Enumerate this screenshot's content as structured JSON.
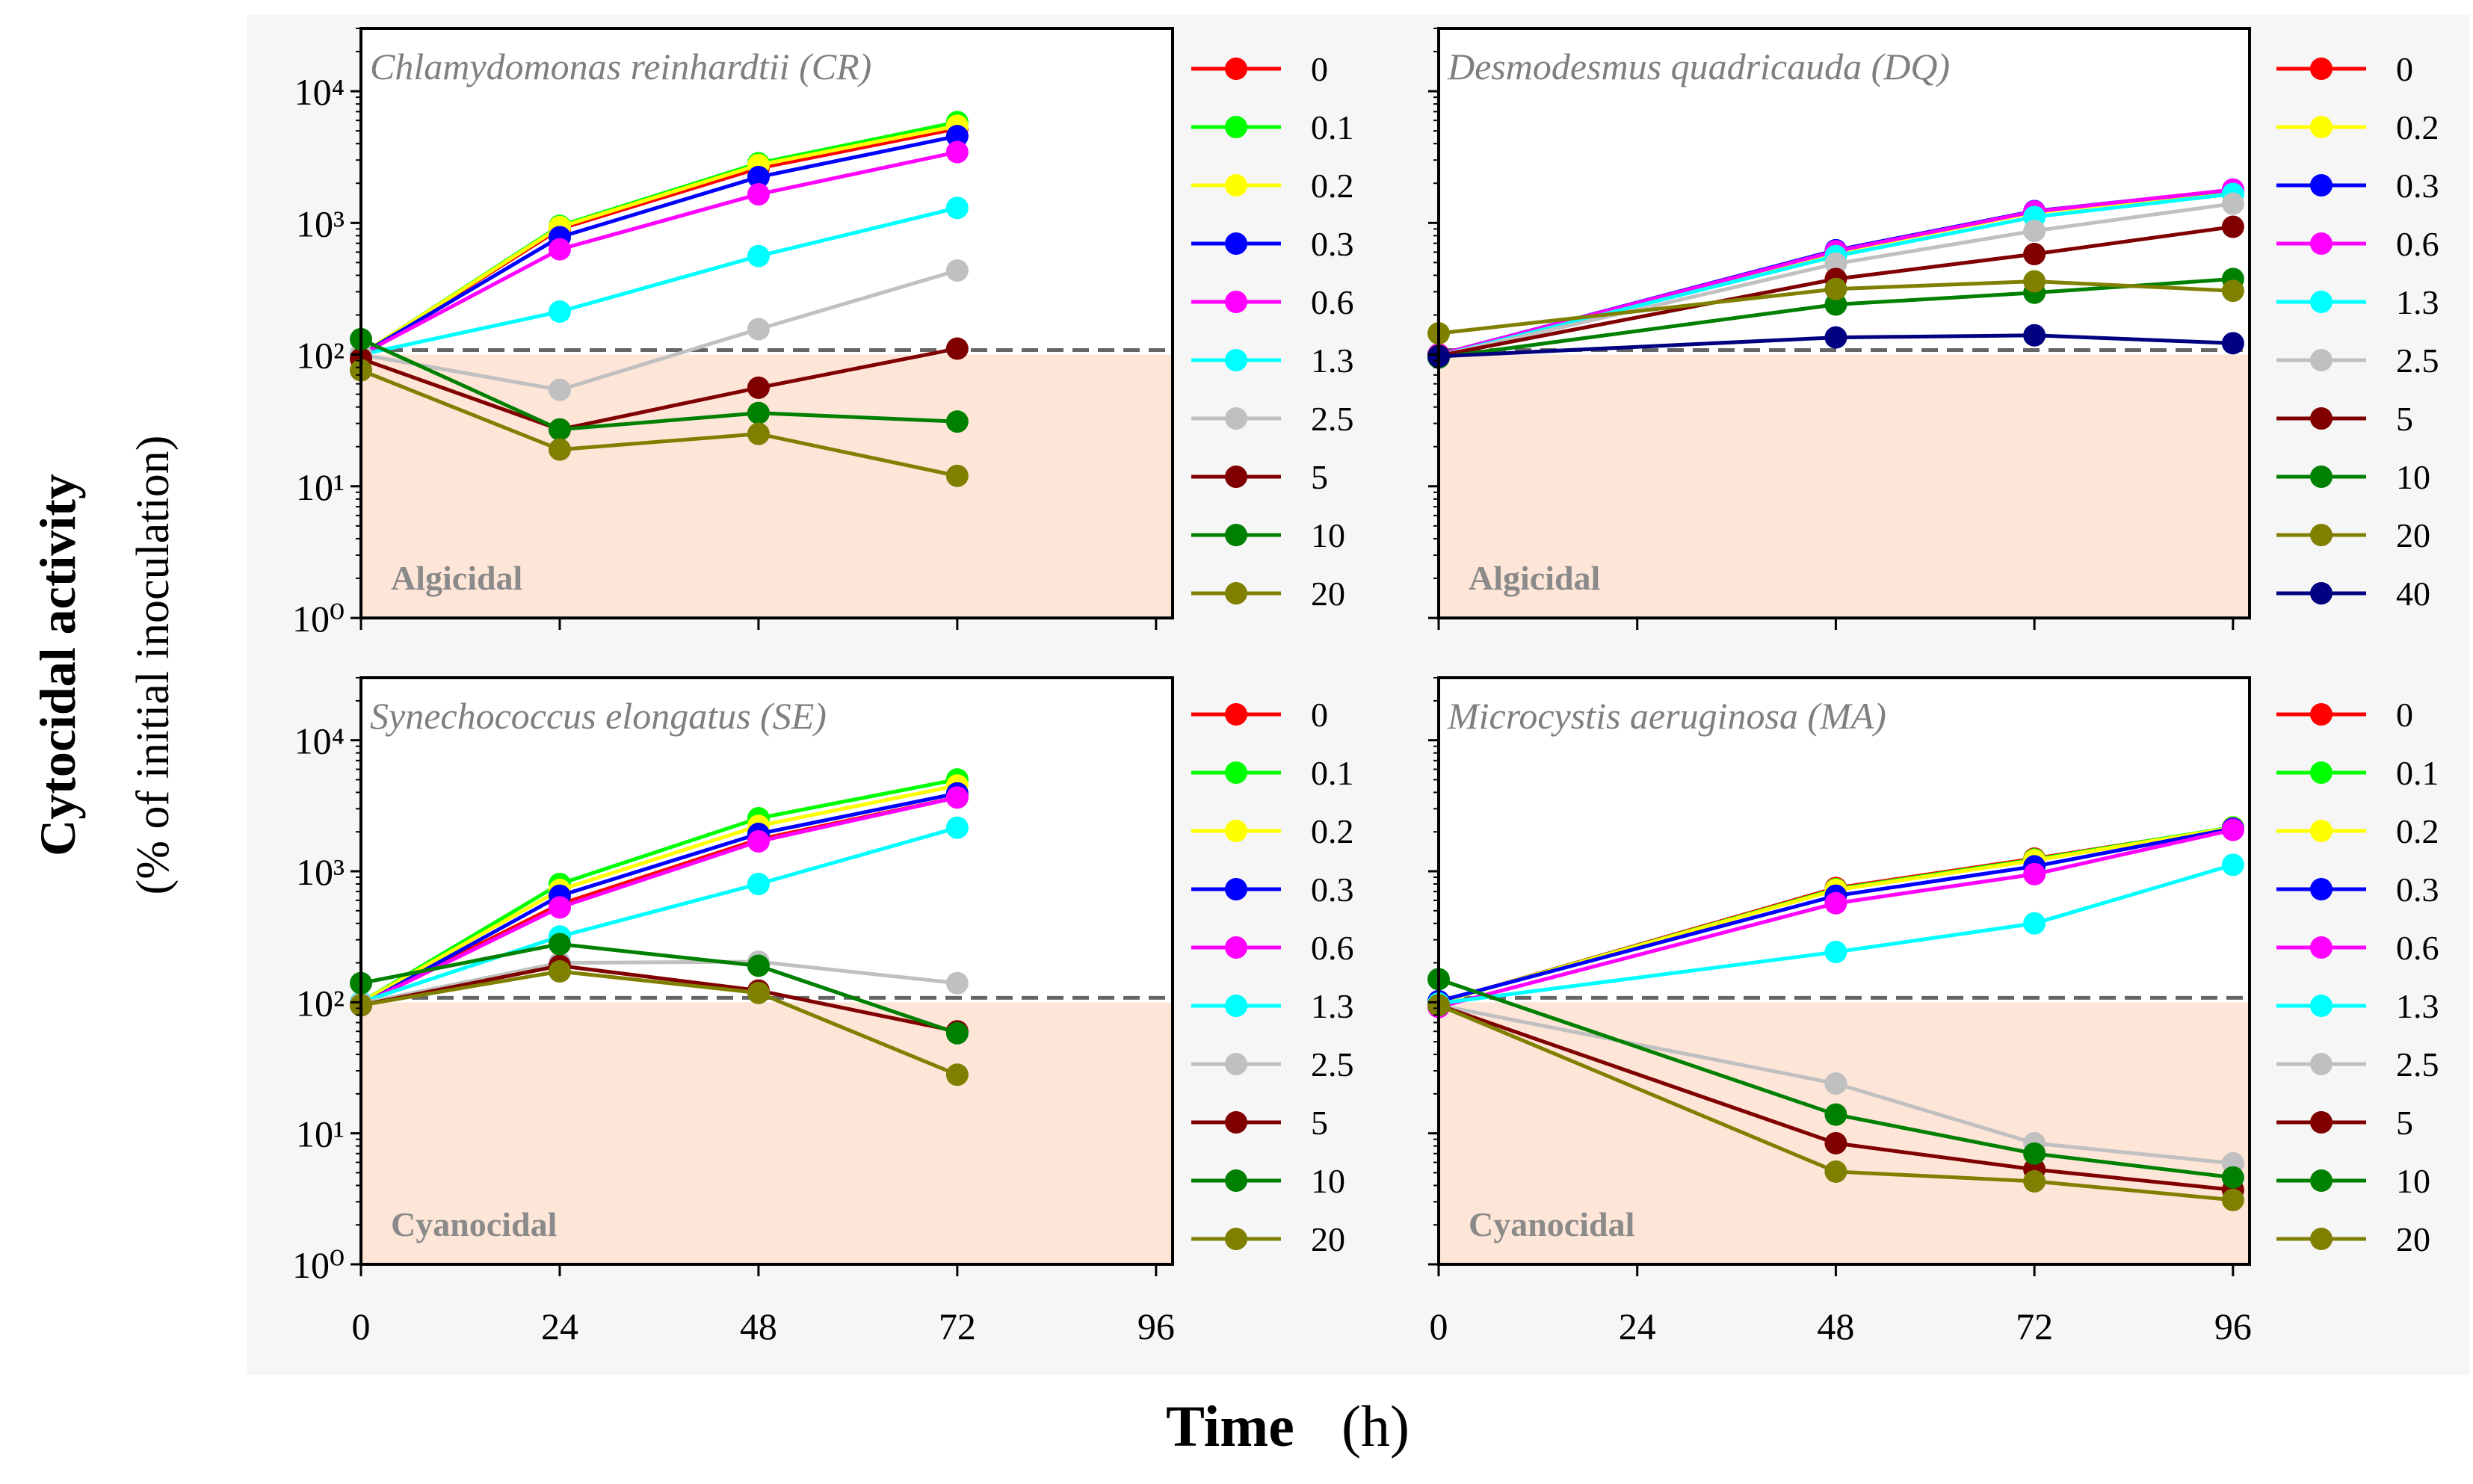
{
  "chart_data": {
    "type": "line",
    "y_scale": "log",
    "ylim": [
      1,
      30000
    ],
    "xlim": [
      0,
      98
    ],
    "x_ticks": [
      0,
      24,
      48,
      72,
      96
    ],
    "x_tick_labels": [
      "0",
      "24",
      "48",
      "72",
      "96"
    ],
    "y_ticks": [
      1,
      10,
      100,
      1000,
      10000
    ],
    "y_tick_labels": [
      "10⁰",
      "10¹",
      "10²",
      "10³",
      "10⁴"
    ],
    "ylabel": "Cytocidal activity",
    "ylabel_sub": "(% of initial inoculation)",
    "xlabel": "Time",
    "xlabel_unit": "(h)",
    "reference_line": 100,
    "legend_placement": "right of each panel",
    "colors": {
      "0": "#ff0000",
      "0.1": "#00ff00",
      "0.2": "#ffff00",
      "0.3": "#0000ff",
      "0.6": "#ff00ff",
      "1.3": "#00ffff",
      "2.5": "#c0c0c0",
      "5": "#800000",
      "10": "#008000",
      "20": "#808000",
      "40": "#000080"
    },
    "panels": [
      {
        "title": "Chlamydomonas reinhardtii (CR)",
        "zone_label": "Algicidal",
        "show_y_tick_labels": true,
        "show_x_tick_labels": false,
        "x": [
          0,
          24,
          48,
          72
        ],
        "series": [
          {
            "name": "0",
            "values": [
              100,
              900,
              2600,
              5200
            ]
          },
          {
            "name": "0.1",
            "values": [
              100,
              950,
              2840,
              5830
            ]
          },
          {
            "name": "0.2",
            "values": [
              100,
              930,
              2750,
              5460
            ]
          },
          {
            "name": "0.3",
            "values": [
              100,
              780,
              2230,
              4560
            ]
          },
          {
            "name": "0.6",
            "values": [
              100,
              630,
              1650,
              3450
            ]
          },
          {
            "name": "1.3",
            "values": [
              100,
              212,
              560,
              1300
            ]
          },
          {
            "name": "2.5",
            "values": [
              100,
              54,
              156,
              435
            ]
          },
          {
            "name": "5",
            "values": [
              93,
              27,
              56,
              111
            ]
          },
          {
            "name": "10",
            "values": [
              131,
              27,
              36,
              31
            ]
          },
          {
            "name": "20",
            "values": [
              76,
              19,
              25,
              12
            ]
          }
        ]
      },
      {
        "title": "Desmodesmus quadricauda (DQ)",
        "zone_label": "Algicidal",
        "show_y_tick_labels": false,
        "show_x_tick_labels": false,
        "x": [
          0,
          48,
          72,
          96
        ],
        "series": [
          {
            "name": "0",
            "values": [
              100,
              610,
              1210,
              1750
            ]
          },
          {
            "name": "0.2",
            "values": [
              100,
              600,
              1200,
              1740
            ]
          },
          {
            "name": "0.3",
            "values": [
              100,
              620,
              1230,
              1780
            ]
          },
          {
            "name": "0.6",
            "values": [
              100,
              610,
              1220,
              1790
            ]
          },
          {
            "name": "1.3",
            "values": [
              98,
              560,
              1110,
              1660
            ]
          },
          {
            "name": "2.5",
            "values": [
              98,
              490,
              870,
              1400
            ]
          },
          {
            "name": "5",
            "values": [
              98,
              375,
              580,
              935
            ]
          },
          {
            "name": "10",
            "values": [
              95,
              240,
              295,
              375
            ]
          },
          {
            "name": "20",
            "values": [
              145,
              315,
              360,
              305
            ]
          },
          {
            "name": "40",
            "values": [
              97,
              135,
              140,
              122
            ]
          }
        ]
      },
      {
        "title": "Synechococcus elongatus (SE)",
        "zone_label": "Cyanocidal",
        "show_y_tick_labels": true,
        "show_x_tick_labels": true,
        "x": [
          0,
          24,
          48,
          72
        ],
        "series": [
          {
            "name": "0",
            "values": [
              98,
              560,
              1750,
              3660
            ]
          },
          {
            "name": "0.1",
            "values": [
              100,
              800,
              2540,
              5020
            ]
          },
          {
            "name": "0.2",
            "values": [
              100,
              720,
              2220,
              4510
            ]
          },
          {
            "name": "0.3",
            "values": [
              95,
              650,
              1930,
              3930
            ]
          },
          {
            "name": "0.6",
            "values": [
              96,
              530,
              1690,
              3660
            ]
          },
          {
            "name": "1.3",
            "values": [
              100,
              318,
              800,
              2150
            ]
          },
          {
            "name": "2.5",
            "values": [
              98,
              200,
              204,
              140
            ]
          },
          {
            "name": "5",
            "values": [
              95,
              190,
              123,
              60
            ]
          },
          {
            "name": "10",
            "values": [
              140,
              278,
              190,
              58
            ]
          },
          {
            "name": "20",
            "values": [
              95,
              172,
              118,
              28
            ]
          }
        ]
      },
      {
        "title": "Microcystis aeruginosa (MA)",
        "zone_label": "Cyanocidal",
        "show_y_tick_labels": false,
        "show_x_tick_labels": true,
        "x": [
          0,
          48,
          72,
          96
        ],
        "series": [
          {
            "name": "0",
            "values": [
              100,
              745,
              1250,
              2150
            ]
          },
          {
            "name": "0.1",
            "values": [
              100,
              730,
              1230,
              2170
            ]
          },
          {
            "name": "0.2",
            "values": [
              100,
              720,
              1210,
              2150
            ]
          },
          {
            "name": "0.3",
            "values": [
              102,
              650,
              1090,
              2120
            ]
          },
          {
            "name": "0.6",
            "values": [
              92,
              570,
              950,
              2070
            ]
          },
          {
            "name": "1.3",
            "values": [
              98,
              242,
              400,
              1120
            ]
          },
          {
            "name": "2.5",
            "values": [
              95,
              24,
              8.4,
              5.9
            ]
          },
          {
            "name": "5",
            "values": [
              95,
              8.4,
              5.3,
              3.7
            ]
          },
          {
            "name": "10",
            "values": [
              150,
              13.9,
              7,
              4.6
            ]
          },
          {
            "name": "20",
            "values": [
              95,
              5.1,
              4.3,
              3.1
            ]
          }
        ]
      }
    ]
  }
}
